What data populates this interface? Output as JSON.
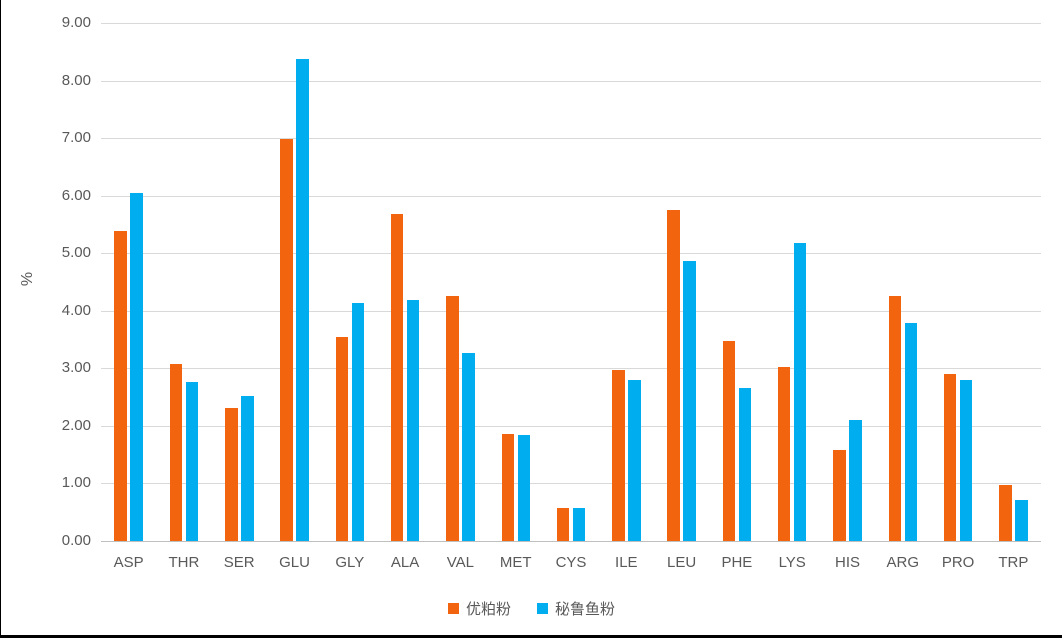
{
  "chart_data": {
    "type": "bar",
    "title": "",
    "xlabel": "",
    "ylabel": "%",
    "ylim": [
      0,
      9
    ],
    "ytick_step": 1,
    "yticks": [
      "0.00",
      "1.00",
      "2.00",
      "3.00",
      "4.00",
      "5.00",
      "6.00",
      "7.00",
      "8.00",
      "9.00"
    ],
    "grid": true,
    "legend_position": "bottom",
    "categories": [
      "ASP",
      "THR",
      "SER",
      "GLU",
      "GLY",
      "ALA",
      "VAL",
      "MET",
      "CYS",
      "ILE",
      "LEU",
      "PHE",
      "LYS",
      "HIS",
      "ARG",
      "PRO",
      "TRP"
    ],
    "series": [
      {
        "name": "优粕粉",
        "color": "#F3640E",
        "values": [
          5.38,
          3.07,
          2.31,
          6.98,
          3.54,
          5.69,
          4.25,
          1.86,
          0.57,
          2.98,
          5.76,
          3.47,
          3.02,
          1.58,
          4.26,
          2.91,
          0.97
        ]
      },
      {
        "name": "秘鲁鱼粉",
        "color": "#00AEEF",
        "values": [
          6.05,
          2.76,
          2.52,
          8.37,
          4.14,
          4.18,
          3.26,
          1.84,
          0.57,
          2.8,
          4.87,
          2.66,
          5.18,
          2.1,
          3.79,
          2.8,
          0.72
        ]
      }
    ]
  },
  "colors": {
    "background": "#ffffff",
    "gridline": "#d9d9d9",
    "axis_line": "#bfbfbf",
    "text": "#595959",
    "border": "#000000"
  }
}
